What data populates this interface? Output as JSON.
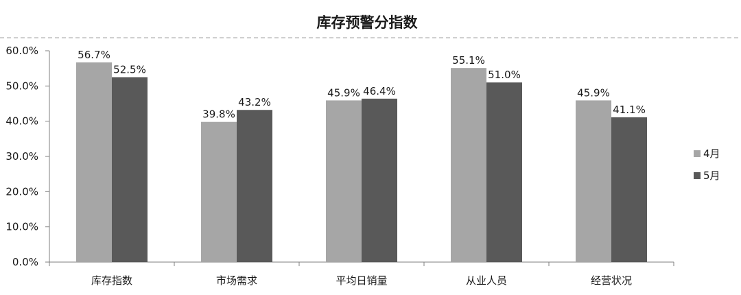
{
  "chart_data": {
    "type": "bar",
    "title": "库存预警分指数",
    "categories": [
      "库存指数",
      "市场需求",
      "平均日销量",
      "从业人员",
      "经营状况"
    ],
    "series": [
      {
        "name": "4月",
        "values": [
          56.7,
          39.8,
          45.9,
          55.1,
          45.9
        ],
        "labels": [
          "56.7%",
          "39.8%",
          "45.9%",
          "55.1%",
          "45.9%"
        ],
        "color": "#a6a6a6"
      },
      {
        "name": "5月",
        "values": [
          52.5,
          43.2,
          46.4,
          51.0,
          41.1
        ],
        "labels": [
          "52.5%",
          "43.2%",
          "46.4%",
          "51.0%",
          "41.1%"
        ],
        "color": "#595959"
      }
    ],
    "ylim": [
      0,
      60
    ],
    "yticks": [
      0,
      10,
      20,
      30,
      40,
      50,
      60
    ],
    "ytick_labels": [
      "0.0%",
      "10.0%",
      "20.0%",
      "30.0%",
      "40.0%",
      "50.0%",
      "60.0%"
    ],
    "grid": false,
    "legend": "right",
    "xlabel": "",
    "ylabel": ""
  }
}
